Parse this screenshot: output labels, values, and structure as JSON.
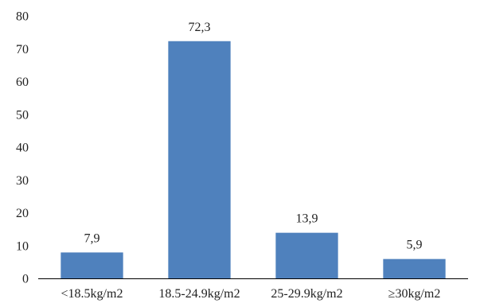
{
  "chart_data": {
    "type": "bar",
    "categories": [
      "<18.5kg/m2",
      "18.5-24.9kg/m2",
      "25-29.9kg/m2",
      "≥30kg/m2"
    ],
    "values": [
      7.9,
      72.3,
      13.9,
      5.9
    ],
    "data_labels": [
      "7,9",
      "72,3",
      "13,9",
      "5,9"
    ],
    "title": "",
    "xlabel": "",
    "ylabel": "",
    "ylim": [
      0,
      80
    ],
    "yticks": [
      0,
      10,
      20,
      30,
      40,
      50,
      60,
      70,
      80
    ],
    "grid": false,
    "legend": "none",
    "bar_color": "#4f81bd",
    "axis_color": "#000000"
  }
}
